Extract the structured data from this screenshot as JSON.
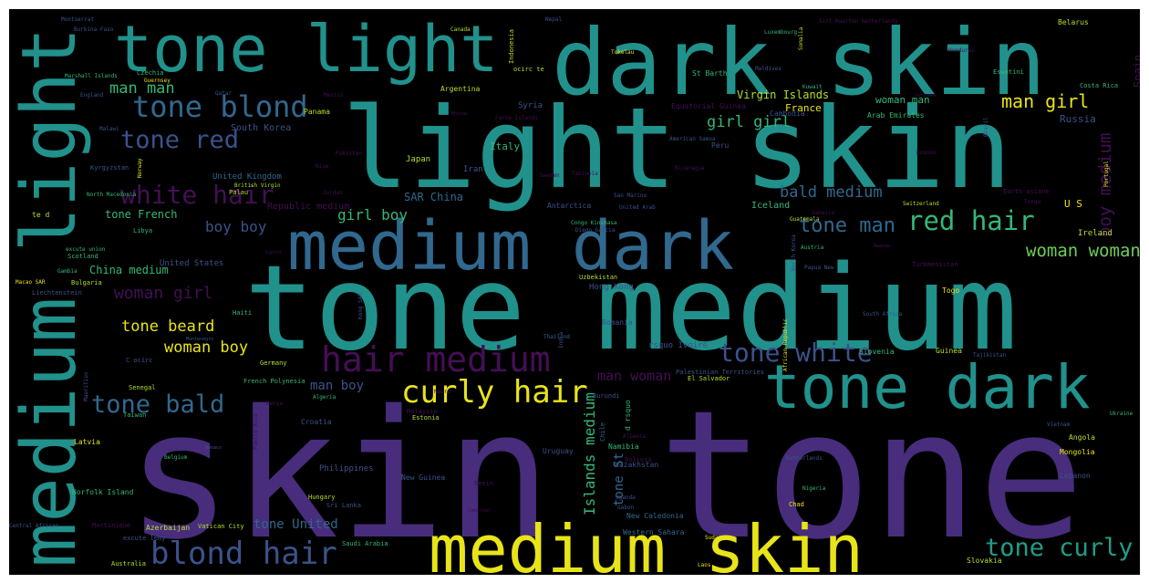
{
  "palette": {
    "purple": "#472d7b",
    "violet": "#440f55",
    "indigo": "#3b528b",
    "blue": "#31688e",
    "teal": "#21918c",
    "sea": "#1f9e89",
    "green": "#35b779",
    "lime": "#6ece58",
    "olive": "#b5de2b",
    "yellow": "#e8e419",
    "dark": "#3a2a6e"
  },
  "words": [
    {
      "text": "skin tone",
      "color": "purple"
    },
    {
      "text": "tone medium",
      "color": "teal"
    },
    {
      "text": "light skin",
      "color": "teal"
    },
    {
      "text": "dark skin",
      "color": "teal"
    },
    {
      "text": "medium light",
      "color": "teal",
      "rotated": true
    },
    {
      "text": "tone light",
      "color": "teal"
    },
    {
      "text": "medium skin",
      "color": "yellow"
    },
    {
      "text": "medium dark",
      "color": "blue"
    },
    {
      "text": "tone dark",
      "color": "teal"
    },
    {
      "text": "hair medium",
      "color": "violet"
    },
    {
      "text": "curly hair",
      "color": "yellow"
    },
    {
      "text": "tone white",
      "color": "indigo"
    },
    {
      "text": "blond hair",
      "color": "indigo"
    },
    {
      "text": "tone curly",
      "color": "sea"
    },
    {
      "text": "tone blond",
      "color": "blue"
    },
    {
      "text": "tone red",
      "color": "indigo"
    },
    {
      "text": "white hair",
      "color": "violet"
    },
    {
      "text": "tone bald",
      "color": "blue"
    },
    {
      "text": "red hair",
      "color": "green"
    },
    {
      "text": "tone man",
      "color": "blue"
    },
    {
      "text": "woman woman",
      "color": "lime"
    },
    {
      "text": "man girl",
      "color": "yellow"
    },
    {
      "text": "girl girl",
      "color": "green"
    },
    {
      "text": "bald medium",
      "color": "blue"
    },
    {
      "text": "man man",
      "color": "green"
    },
    {
      "text": "boy medium",
      "color": "violet",
      "rotated": true
    },
    {
      "text": "Islands medium",
      "color": "green",
      "rotated": true
    },
    {
      "text": "tone St",
      "color": "blue",
      "rotated": true
    },
    {
      "text": "woman girl",
      "color": "violet"
    },
    {
      "text": "tone beard",
      "color": "yellow"
    },
    {
      "text": "woman boy",
      "color": "yellow"
    },
    {
      "text": "boy boy",
      "color": "indigo"
    },
    {
      "text": "girl boy",
      "color": "green"
    },
    {
      "text": "man woman",
      "color": "violet"
    },
    {
      "text": "man boy",
      "color": "indigo"
    },
    {
      "text": "tone United",
      "color": "blue"
    },
    {
      "text": "Virgin Islands",
      "color": "olive"
    },
    {
      "text": "woman man",
      "color": "green"
    },
    {
      "text": "tone French",
      "color": "green"
    },
    {
      "text": "China medium",
      "color": "green"
    },
    {
      "text": "SAR China",
      "color": "blue"
    },
    {
      "text": "Republic medium",
      "color": "violet"
    },
    {
      "text": "Russia",
      "color": "indigo"
    },
    {
      "text": "France",
      "color": "yellow"
    },
    {
      "text": "Italy",
      "color": "green"
    },
    {
      "text": "Iceland",
      "color": "green"
    },
    {
      "text": "Spain",
      "color": "violet",
      "rotated": true
    },
    {
      "text": "Ireland",
      "color": "olive"
    },
    {
      "text": "U S",
      "color": "yellow"
    },
    {
      "text": "Argentina",
      "color": "olive"
    },
    {
      "text": "South Korea",
      "color": "indigo"
    },
    {
      "text": "United Kingdom",
      "color": "blue"
    },
    {
      "text": "United States",
      "color": "indigo"
    },
    {
      "text": "Hong Kong",
      "color": "indigo"
    },
    {
      "text": "Romania",
      "color": "indigo"
    },
    {
      "text": "Uzbekistan",
      "color": "olive"
    },
    {
      "text": "Syria",
      "color": "indigo"
    },
    {
      "text": "Japan",
      "color": "olive"
    },
    {
      "text": "Iran",
      "color": "indigo"
    },
    {
      "text": "Panama",
      "color": "olive"
    },
    {
      "text": "Cambodia",
      "color": "indigo"
    },
    {
      "text": "Equatorial Guinea",
      "color": "violet"
    },
    {
      "text": "Arab Emirates",
      "color": "green"
    },
    {
      "text": "Antarctica",
      "color": "indigo"
    },
    {
      "text": "Peru",
      "color": "indigo"
    },
    {
      "text": "Philippines",
      "color": "indigo"
    },
    {
      "text": "Slovenia",
      "color": "green"
    },
    {
      "text": "Guinea",
      "color": "olive"
    },
    {
      "text": "Mongolia",
      "color": "yellow"
    },
    {
      "text": "Angola",
      "color": "olive"
    },
    {
      "text": "Lebanon",
      "color": "indigo"
    },
    {
      "text": "Slovakia",
      "color": "olive"
    },
    {
      "text": "Togo",
      "color": "yellow"
    },
    {
      "text": "Kazakhstan",
      "color": "indigo"
    },
    {
      "text": "Namibia",
      "color": "green"
    },
    {
      "text": "Uruguay",
      "color": "indigo"
    },
    {
      "text": "New Caledonia",
      "color": "blue"
    },
    {
      "text": "Western Sahara",
      "color": "blue"
    },
    {
      "text": "Croatia",
      "color": "indigo"
    },
    {
      "text": "Estonia",
      "color": "olive"
    },
    {
      "text": "Burundi",
      "color": "indigo"
    },
    {
      "text": "Malaysia",
      "color": "violet"
    },
    {
      "text": "Benin",
      "color": "violet"
    },
    {
      "text": "New Guinea",
      "color": "indigo"
    },
    {
      "text": "Sri Lanka",
      "color": "indigo"
    },
    {
      "text": "Hungary",
      "color": "olive"
    },
    {
      "text": "Azerbaijan",
      "color": "olive"
    },
    {
      "text": "Vatican City",
      "color": "olive"
    },
    {
      "text": "Saudi Arabia",
      "color": "green"
    },
    {
      "text": "Australia",
      "color": "olive"
    },
    {
      "text": "Norfolk Island",
      "color": "green"
    },
    {
      "text": "Latvia",
      "color": "yellow"
    },
    {
      "text": "Senegal",
      "color": "olive"
    },
    {
      "text": "Taiwan",
      "color": "green"
    },
    {
      "text": "Germany",
      "color": "olive"
    },
    {
      "text": "Haiti",
      "color": "green"
    },
    {
      "text": "Bulgaria",
      "color": "olive"
    },
    {
      "text": "Scotland",
      "color": "green"
    },
    {
      "text": "Libya",
      "color": "green"
    },
    {
      "text": "Kyrgyzstan",
      "color": "indigo"
    },
    {
      "text": "North Macedonia",
      "color": "green"
    },
    {
      "text": "England",
      "color": "indigo"
    },
    {
      "text": "Marshall Islands",
      "color": "green"
    },
    {
      "text": "Czechia",
      "color": "green"
    },
    {
      "text": "Guernsey",
      "color": "yellow"
    },
    {
      "text": "Malawi",
      "color": "indigo"
    },
    {
      "text": "Pakistan",
      "color": "violet"
    },
    {
      "text": "Jordan",
      "color": "violet"
    },
    {
      "text": "Sweden",
      "color": "violet"
    },
    {
      "text": "Tanzania",
      "color": "violet"
    },
    {
      "text": "Thailand",
      "color": "blue"
    },
    {
      "text": "Algeria",
      "color": "green"
    },
    {
      "text": "Kenya",
      "color": "violet"
    },
    {
      "text": "El Salvador",
      "color": "olive"
    },
    {
      "text": "Palestinian Territories",
      "color": "indigo"
    },
    {
      "text": "Guatemala",
      "color": "olive"
    },
    {
      "text": "Jamaica",
      "color": "violet"
    },
    {
      "text": "Austria",
      "color": "green"
    },
    {
      "text": "Rwanda",
      "color": "violet"
    },
    {
      "text": "Turkmenistan",
      "color": "violet"
    },
    {
      "text": "Switzerland",
      "color": "olive"
    },
    {
      "text": "Papua New",
      "color": "indigo"
    },
    {
      "text": "South Africa",
      "color": "indigo"
    },
    {
      "text": "Nigeria",
      "color": "green"
    },
    {
      "text": "Chad",
      "color": "yellow"
    },
    {
      "text": "Netherlands",
      "color": "indigo"
    },
    {
      "text": "Vietnam",
      "color": "indigo"
    },
    {
      "text": "Ukraine",
      "color": "green"
    },
    {
      "text": "Belarus",
      "color": "olive"
    },
    {
      "text": "Eswatini",
      "color": "green"
    },
    {
      "text": "Costa Rica",
      "color": "green"
    },
    {
      "text": "Honduras",
      "color": "violet"
    },
    {
      "text": "Maldives",
      "color": "indigo"
    },
    {
      "text": "Kuwait",
      "color": "green"
    },
    {
      "text": "St Barth",
      "color": "green"
    },
    {
      "text": "Luxembourg",
      "color": "green"
    },
    {
      "text": "Tokelau",
      "color": "yellow"
    },
    {
      "text": "Canada",
      "color": "olive"
    },
    {
      "text": "Nepal",
      "color": "indigo"
    },
    {
      "text": "Burkina Faso",
      "color": "indigo"
    },
    {
      "text": "Montserrat",
      "color": "indigo"
    },
    {
      "text": "Qatar",
      "color": "indigo"
    },
    {
      "text": "Niue",
      "color": "violet"
    },
    {
      "text": "Palau",
      "color": "olive"
    },
    {
      "text": "British Virgin",
      "color": "olive"
    },
    {
      "text": "San Marino",
      "color": "indigo"
    },
    {
      "text": "United Arab",
      "color": "indigo"
    },
    {
      "text": "American Samoa",
      "color": "indigo"
    },
    {
      "text": "Nicaragua",
      "color": "violet"
    },
    {
      "text": "Congo Kinshasa",
      "color": "green"
    },
    {
      "text": "Diego Garcia",
      "color": "indigo"
    },
    {
      "text": "Faroe Islands",
      "color": "violet"
    },
    {
      "text": "Gambia",
      "color": "green"
    },
    {
      "text": "Macao SAR",
      "color": "yellow"
    },
    {
      "text": "Liechtenstein",
      "color": "indigo"
    },
    {
      "text": "Montenegro",
      "color": "indigo"
    },
    {
      "text": "French Polynesia",
      "color": "green"
    },
    {
      "text": "Monaco",
      "color": "indigo"
    },
    {
      "text": "Belgium",
      "color": "green"
    },
    {
      "text": "Central African",
      "color": "indigo"
    },
    {
      "text": "Gibraltar",
      "color": "violet"
    },
    {
      "text": "Cameroon",
      "color": "violet"
    },
    {
      "text": "Gabon",
      "color": "indigo"
    },
    {
      "text": "Uganda",
      "color": "indigo"
    },
    {
      "text": "Sudan",
      "color": "yellow"
    },
    {
      "text": "Laos",
      "color": "yellow"
    },
    {
      "text": "Albania",
      "color": "violet"
    },
    {
      "text": "Bolivia",
      "color": "violet"
    },
    {
      "text": "Earth asiane",
      "color": "violet"
    },
    {
      "text": "Tonga",
      "color": "violet"
    },
    {
      "text": "Indonesia",
      "color": "olive",
      "rotated": true
    },
    {
      "text": "Somalia",
      "color": "olive",
      "rotated": true
    },
    {
      "text": "Brazil",
      "color": "indigo",
      "rotated": true
    },
    {
      "text": "Portugal",
      "color": "yellow",
      "rotated": true
    },
    {
      "text": "Norway",
      "color": "yellow",
      "rotated": true
    },
    {
      "text": "North Korea",
      "color": "indigo",
      "rotated": true
    },
    {
      "text": "Chile",
      "color": "blue",
      "rotated": true
    },
    {
      "text": "Kong SAR",
      "color": "indigo",
      "rotated": true
    },
    {
      "text": "Puerto Rico",
      "color": "violet",
      "rotated": true
    },
    {
      "text": "Mauritius",
      "color": "indigo",
      "rotated": true
    },
    {
      "text": "India",
      "color": "indigo",
      "rotated": true
    },
    {
      "text": "African Republic",
      "color": "yellow",
      "rotated": true
    },
    {
      "text": "ocirc te",
      "color": "olive"
    },
    {
      "text": "rsquo Ivoire",
      "color": "indigo"
    },
    {
      "text": "d rsquo",
      "color": "green",
      "rotated": true
    },
    {
      "text": "C ocirc",
      "color": "indigo"
    },
    {
      "text": "te d",
      "color": "olive"
    },
    {
      "text": "excute union",
      "color": "green"
    },
    {
      "text": "excute lemy",
      "color": "indigo"
    },
    {
      "text": "Martinique",
      "color": "violet"
    },
    {
      "text": "Kosovo",
      "color": "violet"
    },
    {
      "text": "Suriname",
      "color": "violet"
    },
    {
      "text": "Bhutan",
      "color": "violet"
    },
    {
      "text": "Mexico",
      "color": "violet"
    },
    {
      "text": "Cyprus",
      "color": "violet"
    },
    {
      "text": "Nauru",
      "color": "violet"
    },
    {
      "text": "Sint Maarten Netherlands",
      "color": "violet"
    },
    {
      "text": "Tajikistan",
      "color": "indigo"
    }
  ]
}
